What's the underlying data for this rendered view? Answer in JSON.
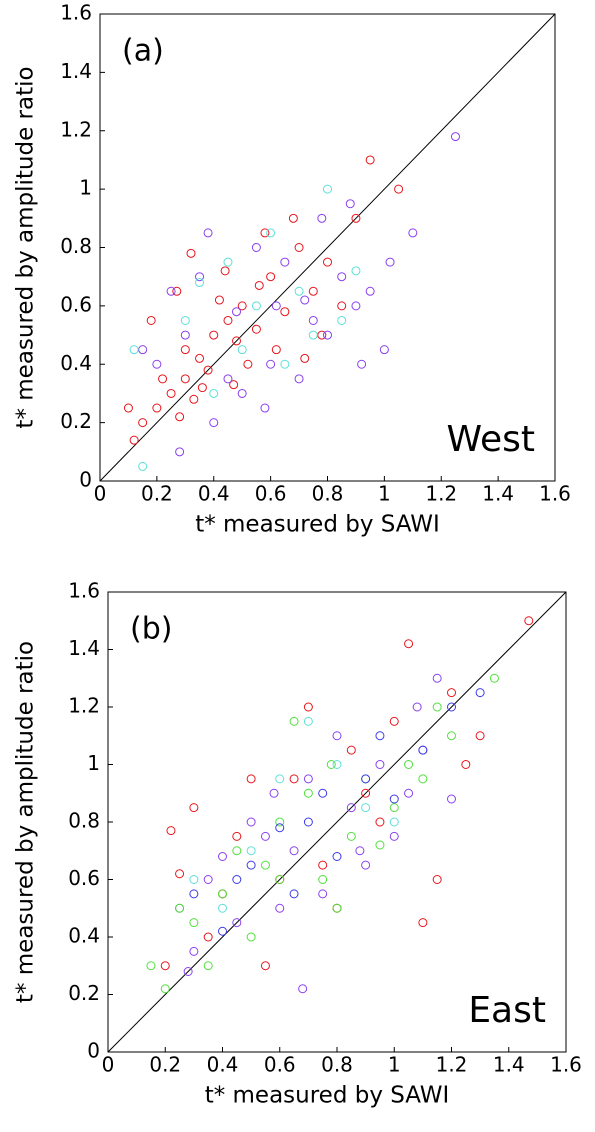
{
  "chart_data": [
    {
      "type": "scatter",
      "panel_label": "(a)",
      "annotation": "West",
      "xlabel": "t* measured by SAWI",
      "ylabel": "t* measured by amplitude ratio",
      "xlim": [
        0,
        1.6
      ],
      "ylim": [
        0,
        1.6
      ],
      "xticks": [
        0,
        0.2,
        0.4,
        0.6,
        0.8,
        1,
        1.2,
        1.4,
        1.6
      ],
      "yticks": [
        0,
        0.2,
        0.4,
        0.6,
        0.8,
        1,
        1.2,
        1.4,
        1.6
      ],
      "series": [
        {
          "color": "#e8141b",
          "x": [
            0.25,
            0.3,
            0.35,
            0.4,
            0.45,
            0.5,
            0.2,
            0.15,
            0.3,
            0.38,
            0.42,
            0.55,
            0.6,
            0.65,
            0.7,
            0.75,
            0.8,
            0.28,
            0.33,
            0.48,
            0.52,
            0.58,
            0.22,
            0.12,
            0.18,
            0.9,
            1.05,
            0.85,
            0.62,
            0.44,
            0.36,
            0.27,
            0.68,
            0.78,
            0.95,
            0.1,
            0.47,
            0.56,
            0.72,
            0.32
          ],
          "values": [
            0.3,
            0.35,
            0.42,
            0.5,
            0.55,
            0.6,
            0.25,
            0.2,
            0.45,
            0.38,
            0.62,
            0.52,
            0.7,
            0.58,
            0.8,
            0.65,
            0.75,
            0.22,
            0.28,
            0.48,
            0.4,
            0.85,
            0.35,
            0.14,
            0.55,
            0.9,
            1.0,
            0.6,
            0.45,
            0.72,
            0.32,
            0.65,
            0.9,
            0.5,
            1.1,
            0.25,
            0.33,
            0.67,
            0.42,
            0.78
          ]
        },
        {
          "color": "#8a3ff0",
          "x": [
            0.3,
            0.45,
            0.6,
            0.75,
            0.9,
            1.0,
            0.2,
            0.35,
            0.5,
            0.65,
            0.8,
            0.95,
            1.1,
            1.25,
            0.4,
            0.55,
            0.7,
            0.85,
            0.15,
            0.28,
            0.62,
            0.78,
            0.92,
            1.02,
            0.48,
            0.58,
            0.72,
            0.38,
            0.25,
            0.88
          ],
          "values": [
            0.5,
            0.35,
            0.4,
            0.55,
            0.6,
            0.45,
            0.4,
            0.7,
            0.3,
            0.75,
            0.5,
            0.65,
            0.85,
            1.18,
            0.2,
            0.8,
            0.35,
            0.7,
            0.45,
            0.1,
            0.6,
            0.9,
            0.4,
            0.75,
            0.58,
            0.25,
            0.62,
            0.85,
            0.65,
            0.95
          ]
        },
        {
          "color": "#5ce0d8",
          "x": [
            0.3,
            0.5,
            0.7,
            0.9,
            0.4,
            0.6,
            0.8,
            0.15,
            0.55,
            0.75,
            0.45,
            0.65,
            0.35,
            0.85,
            0.12
          ],
          "values": [
            0.55,
            0.45,
            0.65,
            0.72,
            0.3,
            0.85,
            1.0,
            0.05,
            0.6,
            0.5,
            0.75,
            0.4,
            0.68,
            0.55,
            0.45
          ]
        }
      ]
    },
    {
      "type": "scatter",
      "panel_label": "(b)",
      "annotation": "East",
      "xlabel": "t* measured by SAWI",
      "ylabel": "t* measured by amplitude ratio",
      "xlim": [
        0,
        1.6
      ],
      "ylim": [
        0,
        1.6
      ],
      "xticks": [
        0,
        0.2,
        0.4,
        0.6,
        0.8,
        1,
        1.2,
        1.4,
        1.6
      ],
      "yticks": [
        0,
        0.2,
        0.4,
        0.6,
        0.8,
        1,
        1.2,
        1.4,
        1.6
      ],
      "series": [
        {
          "color": "#e8141b",
          "x": [
            0.2,
            0.3,
            0.4,
            0.5,
            0.6,
            0.7,
            0.8,
            0.9,
            1.0,
            1.1,
            1.2,
            1.3,
            1.47,
            0.25,
            0.35,
            0.45,
            0.55,
            0.65,
            0.75,
            0.85,
            0.95,
            1.05,
            1.15,
            0.22,
            1.25
          ],
          "values": [
            0.3,
            0.85,
            0.55,
            0.95,
            0.6,
            1.2,
            0.5,
            0.9,
            1.15,
            0.45,
            1.25,
            1.1,
            1.5,
            0.62,
            0.4,
            0.75,
            0.3,
            0.95,
            0.65,
            1.05,
            0.8,
            1.42,
            0.6,
            0.77,
            1.0
          ]
        },
        {
          "color": "#8a3ff0",
          "x": [
            0.25,
            0.35,
            0.45,
            0.55,
            0.65,
            0.75,
            0.85,
            0.95,
            1.05,
            1.15,
            0.3,
            0.5,
            0.7,
            0.9,
            1.1,
            0.4,
            0.6,
            0.8,
            1.0,
            1.2,
            0.28,
            0.68,
            0.88,
            1.08,
            0.58
          ],
          "values": [
            0.5,
            0.6,
            0.45,
            0.75,
            0.7,
            0.55,
            0.85,
            1.0,
            0.9,
            1.3,
            0.35,
            0.8,
            0.95,
            0.65,
            1.05,
            0.68,
            0.5,
            1.1,
            0.75,
            0.88,
            0.28,
            0.22,
            0.7,
            1.2,
            0.9
          ]
        },
        {
          "color": "#4fe03a",
          "x": [
            0.15,
            0.3,
            0.45,
            0.6,
            0.75,
            0.9,
            1.05,
            1.2,
            1.35,
            0.2,
            0.4,
            0.55,
            0.7,
            0.85,
            1.0,
            1.15,
            0.25,
            0.5,
            0.65,
            0.8,
            0.95,
            1.1,
            0.35,
            0.6,
            0.78
          ],
          "values": [
            0.3,
            0.45,
            0.7,
            0.8,
            0.6,
            0.95,
            1.0,
            1.1,
            1.3,
            0.22,
            0.55,
            0.65,
            0.9,
            0.75,
            0.85,
            1.2,
            0.5,
            0.4,
            1.15,
            0.5,
            0.72,
            0.95,
            0.3,
            0.6,
            1.0
          ]
        },
        {
          "color": "#3a3ae8",
          "x": [
            0.3,
            0.5,
            0.7,
            0.9,
            1.1,
            1.3,
            0.4,
            0.6,
            0.8,
            1.0,
            1.2,
            0.45,
            0.75,
            0.95,
            0.65
          ],
          "values": [
            0.55,
            0.65,
            0.8,
            0.95,
            1.05,
            1.25,
            0.42,
            0.78,
            0.68,
            0.88,
            1.2,
            0.6,
            0.9,
            1.1,
            0.55
          ]
        },
        {
          "color": "#5ce0d8",
          "x": [
            0.3,
            0.5,
            0.7,
            0.9,
            0.6,
            0.8,
            1.0,
            0.4
          ],
          "values": [
            0.6,
            0.7,
            1.15,
            0.85,
            0.95,
            1.0,
            0.8,
            0.5
          ]
        }
      ]
    }
  ]
}
